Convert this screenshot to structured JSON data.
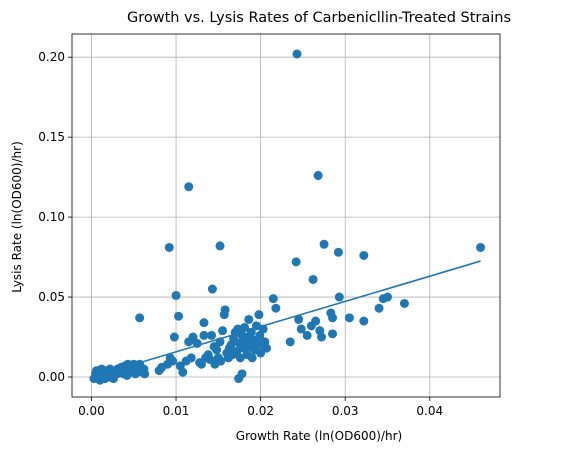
{
  "chart_data": {
    "type": "scatter",
    "title": "Growth vs. Lysis Rates of Carbenicllin-Treated Strains",
    "xlabel": "Growth Rate (ln(OD600)/hr)",
    "ylabel": "Lysis Rate (ln(OD600)/hr)",
    "xlim": [
      -0.0023,
      0.0483
    ],
    "ylim": [
      -0.0125,
      0.2145
    ],
    "xticks": [
      0.0,
      0.01,
      0.02,
      0.03,
      0.04
    ],
    "xtick_labels": [
      "0.00",
      "0.01",
      "0.02",
      "0.03",
      "0.04"
    ],
    "yticks": [
      0.0,
      0.05,
      0.1,
      0.15,
      0.2
    ],
    "ytick_labels": [
      "0.00",
      "0.05",
      "0.10",
      "0.15",
      "0.20"
    ],
    "grid": true,
    "colors": {
      "points": "#1f77b4",
      "fit_line": "#1f77b4"
    },
    "series": [
      {
        "type": "scatter",
        "points": [
          [
            0.0003,
            -0.001
          ],
          [
            0.0005,
            0.002
          ],
          [
            0.0006,
            0.004
          ],
          [
            0.0008,
            0.0
          ],
          [
            0.001,
            0.003
          ],
          [
            0.001,
            -0.002
          ],
          [
            0.0012,
            0.005
          ],
          [
            0.0013,
            0.001
          ],
          [
            0.0015,
            0.003
          ],
          [
            0.0016,
            -0.001
          ],
          [
            0.0018,
            0.004
          ],
          [
            0.0019,
            0.002
          ],
          [
            0.002,
            0.0
          ],
          [
            0.0022,
            0.005
          ],
          [
            0.0023,
            0.003
          ],
          [
            0.0025,
            0.001
          ],
          [
            0.0026,
            -0.001
          ],
          [
            0.0028,
            0.004
          ],
          [
            0.003,
            0.002
          ],
          [
            0.0031,
            0.005
          ],
          [
            0.0033,
            0.003
          ],
          [
            0.0035,
            0.006
          ],
          [
            0.0036,
            0.004
          ],
          [
            0.0038,
            0.002
          ],
          [
            0.004,
            0.007
          ],
          [
            0.0041,
            0.005
          ],
          [
            0.0042,
            0.001
          ],
          [
            0.0043,
            0.008
          ],
          [
            0.0045,
            0.006
          ],
          [
            0.0046,
            0.004
          ],
          [
            0.0048,
            0.003
          ],
          [
            0.005,
            0.008
          ],
          [
            0.0051,
            0.005
          ],
          [
            0.0052,
            0.002
          ],
          [
            0.0054,
            0.007
          ],
          [
            0.0055,
            0.004
          ],
          [
            0.0057,
            0.008
          ],
          [
            0.0058,
            0.006
          ],
          [
            0.006,
            0.003
          ],
          [
            0.0062,
            0.005
          ],
          [
            0.0063,
            0.002
          ],
          [
            0.0057,
            0.037
          ],
          [
            0.008,
            0.004
          ],
          [
            0.0083,
            0.006
          ],
          [
            0.009,
            0.008
          ],
          [
            0.0092,
            0.081
          ],
          [
            0.0093,
            0.012
          ],
          [
            0.0096,
            0.01
          ],
          [
            0.0098,
            0.025
          ],
          [
            0.01,
            0.051
          ],
          [
            0.0103,
            0.038
          ],
          [
            0.0105,
            0.007
          ],
          [
            0.0108,
            0.003
          ],
          [
            0.0112,
            0.01
          ],
          [
            0.0115,
            0.022
          ],
          [
            0.0115,
            0.119
          ],
          [
            0.0118,
            0.012
          ],
          [
            0.012,
            0.025
          ],
          [
            0.0125,
            0.021
          ],
          [
            0.0128,
            0.009
          ],
          [
            0.013,
            0.008
          ],
          [
            0.0133,
            0.026
          ],
          [
            0.0133,
            0.034
          ],
          [
            0.0135,
            0.012
          ],
          [
            0.0138,
            0.014
          ],
          [
            0.014,
            0.011
          ],
          [
            0.0142,
            0.026
          ],
          [
            0.0143,
            0.055
          ],
          [
            0.0145,
            0.019
          ],
          [
            0.0146,
            0.008
          ],
          [
            0.0148,
            0.017
          ],
          [
            0.015,
            0.012
          ],
          [
            0.0152,
            0.022
          ],
          [
            0.0152,
            0.082
          ],
          [
            0.0153,
            0.01
          ],
          [
            0.0155,
            0.029
          ],
          [
            0.0157,
            0.039
          ],
          [
            0.0158,
            0.042
          ],
          [
            0.016,
            0.015
          ],
          [
            0.0162,
            0.012
          ],
          [
            0.0163,
            0.018
          ],
          [
            0.0165,
            0.02
          ],
          [
            0.0167,
            0.014
          ],
          [
            0.0168,
            0.024
          ],
          [
            0.017,
            0.028
          ],
          [
            0.0172,
            0.016
          ],
          [
            0.0173,
            0.03
          ],
          [
            0.0174,
            -0.001
          ],
          [
            0.0175,
            0.021
          ],
          [
            0.0176,
            0.012
          ],
          [
            0.0178,
            0.002
          ],
          [
            0.0178,
            0.026
          ],
          [
            0.018,
            0.018
          ],
          [
            0.0181,
            0.031
          ],
          [
            0.0182,
            0.022
          ],
          [
            0.0184,
            0.014
          ],
          [
            0.0185,
            0.025
          ],
          [
            0.0186,
            0.036
          ],
          [
            0.0188,
            0.019
          ],
          [
            0.0189,
            0.028
          ],
          [
            0.019,
            0.012
          ],
          [
            0.0192,
            0.023
          ],
          [
            0.0193,
            0.017
          ],
          [
            0.0195,
            0.032
          ],
          [
            0.0196,
            0.021
          ],
          [
            0.0198,
            0.039
          ],
          [
            0.0199,
            0.026
          ],
          [
            0.02,
            0.015
          ],
          [
            0.0202,
            0.02
          ],
          [
            0.0203,
            0.03
          ],
          [
            0.0205,
            0.022
          ],
          [
            0.0207,
            0.018
          ],
          [
            0.0215,
            0.049
          ],
          [
            0.0218,
            0.043
          ],
          [
            0.0235,
            0.022
          ],
          [
            0.0242,
            0.072
          ],
          [
            0.0243,
            0.202
          ],
          [
            0.0245,
            0.036
          ],
          [
            0.0248,
            0.03
          ],
          [
            0.0255,
            0.026
          ],
          [
            0.026,
            0.032
          ],
          [
            0.0262,
            0.061
          ],
          [
            0.0265,
            0.035
          ],
          [
            0.0268,
            0.126
          ],
          [
            0.027,
            0.029
          ],
          [
            0.0272,
            0.025
          ],
          [
            0.0275,
            0.083
          ],
          [
            0.0283,
            0.04
          ],
          [
            0.0285,
            0.027
          ],
          [
            0.0285,
            0.037
          ],
          [
            0.0292,
            0.078
          ],
          [
            0.0293,
            0.05
          ],
          [
            0.0305,
            0.037
          ],
          [
            0.0322,
            0.076
          ],
          [
            0.0322,
            0.035
          ],
          [
            0.034,
            0.043
          ],
          [
            0.0345,
            0.049
          ],
          [
            0.035,
            0.05
          ],
          [
            0.037,
            0.046
          ],
          [
            0.046,
            0.081
          ]
        ]
      },
      {
        "type": "line",
        "x": [
          0.0,
          0.046
        ],
        "y": [
          0.0,
          0.0725
        ]
      }
    ]
  }
}
